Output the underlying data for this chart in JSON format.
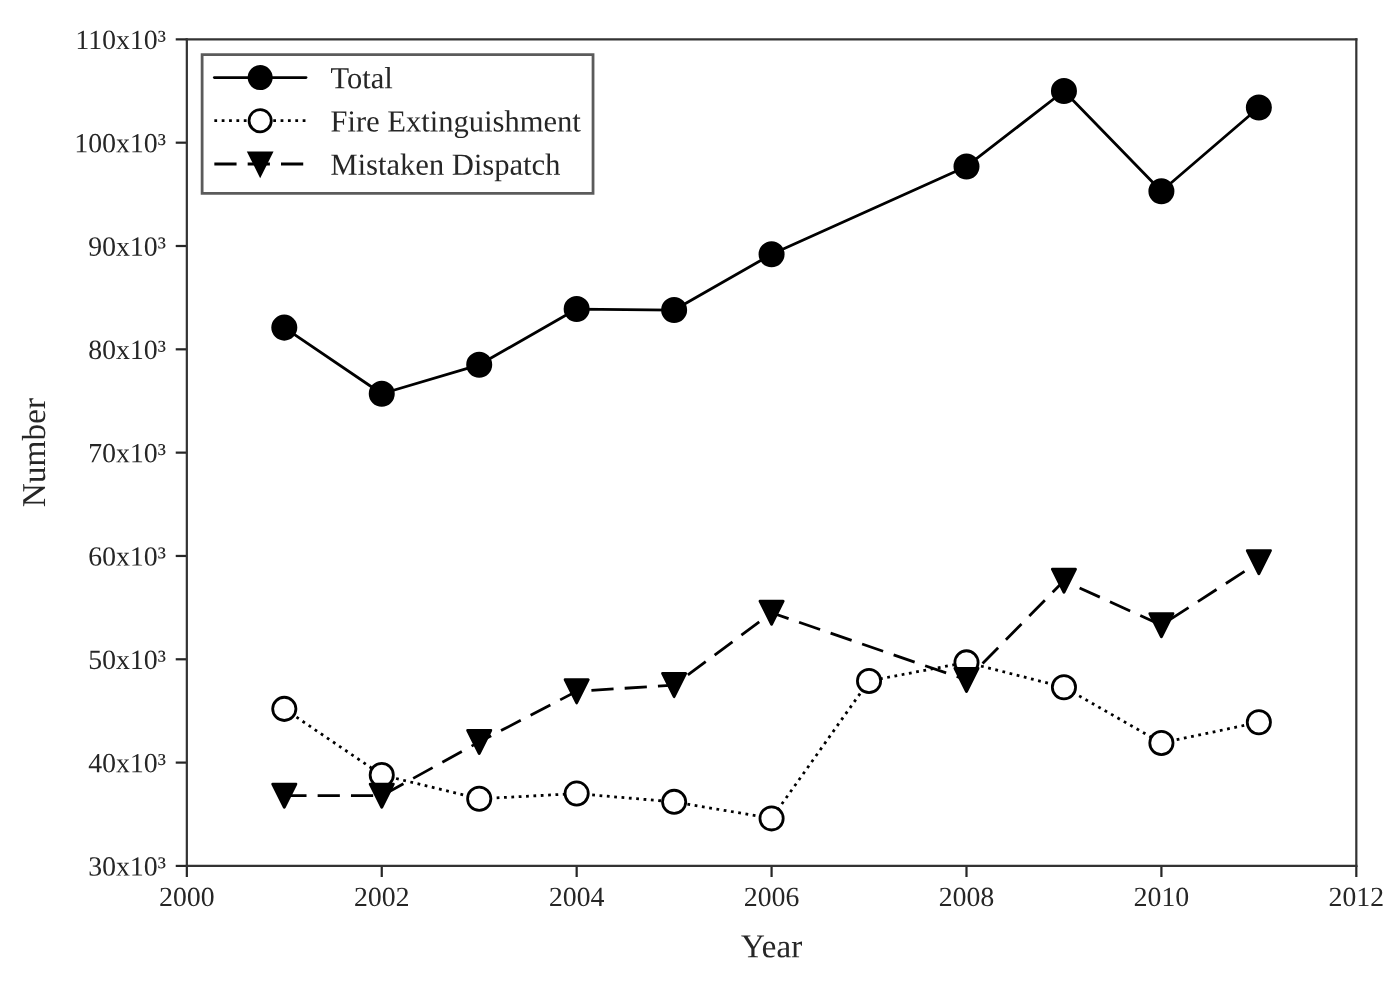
{
  "chart_data": {
    "type": "line",
    "xlabel": "Year",
    "ylabel": "Number",
    "xlim": [
      2000,
      2012
    ],
    "xticks": [
      2000,
      2002,
      2004,
      2006,
      2008,
      2010,
      2012
    ],
    "ylim": [
      30000,
      110000
    ],
    "yticks": [
      {
        "value": 30000,
        "label": "30x10³"
      },
      {
        "value": 40000,
        "label": "40x10³"
      },
      {
        "value": 50000,
        "label": "50x10³"
      },
      {
        "value": 60000,
        "label": "60x10³"
      },
      {
        "value": 70000,
        "label": "70x10³"
      },
      {
        "value": 80000,
        "label": "80x10³"
      },
      {
        "value": 90000,
        "label": "90x10³"
      },
      {
        "value": 100000,
        "label": "100x10³"
      },
      {
        "value": 110000,
        "label": "110x10³"
      }
    ],
    "grid": false,
    "legend": "top left",
    "series": [
      {
        "name": "Total",
        "color": "#000000",
        "marker": "circle",
        "line_style": "solid",
        "x": [
          2001,
          2002,
          2003,
          2004,
          2005,
          2006,
          2008,
          2009,
          2010,
          2011
        ],
        "values": [
          82100,
          75700,
          78500,
          83900,
          83800,
          89200,
          97700,
          105000,
          95300,
          103400
        ]
      },
      {
        "name": "Fire Extinguishment",
        "color": "#000000",
        "marker": "circle",
        "line_style": "dotted",
        "x": [
          2001,
          2002,
          2003,
          2004,
          2005,
          2006,
          2007,
          2008,
          2009,
          2010,
          2011
        ],
        "values": [
          45200,
          38800,
          36500,
          37000,
          36200,
          34600,
          47900,
          49700,
          47300,
          41900,
          43900
        ]
      },
      {
        "name": "Mistaken Dispatch",
        "color": "#000000",
        "marker": "triangle",
        "line_style": "dashed",
        "x": [
          2001,
          2002,
          2003,
          2004,
          2005,
          2006,
          2008,
          2009,
          2010,
          2011
        ],
        "values": [
          36800,
          36800,
          42000,
          46900,
          47500,
          54500,
          48000,
          57600,
          53300,
          59400
        ]
      }
    ]
  }
}
